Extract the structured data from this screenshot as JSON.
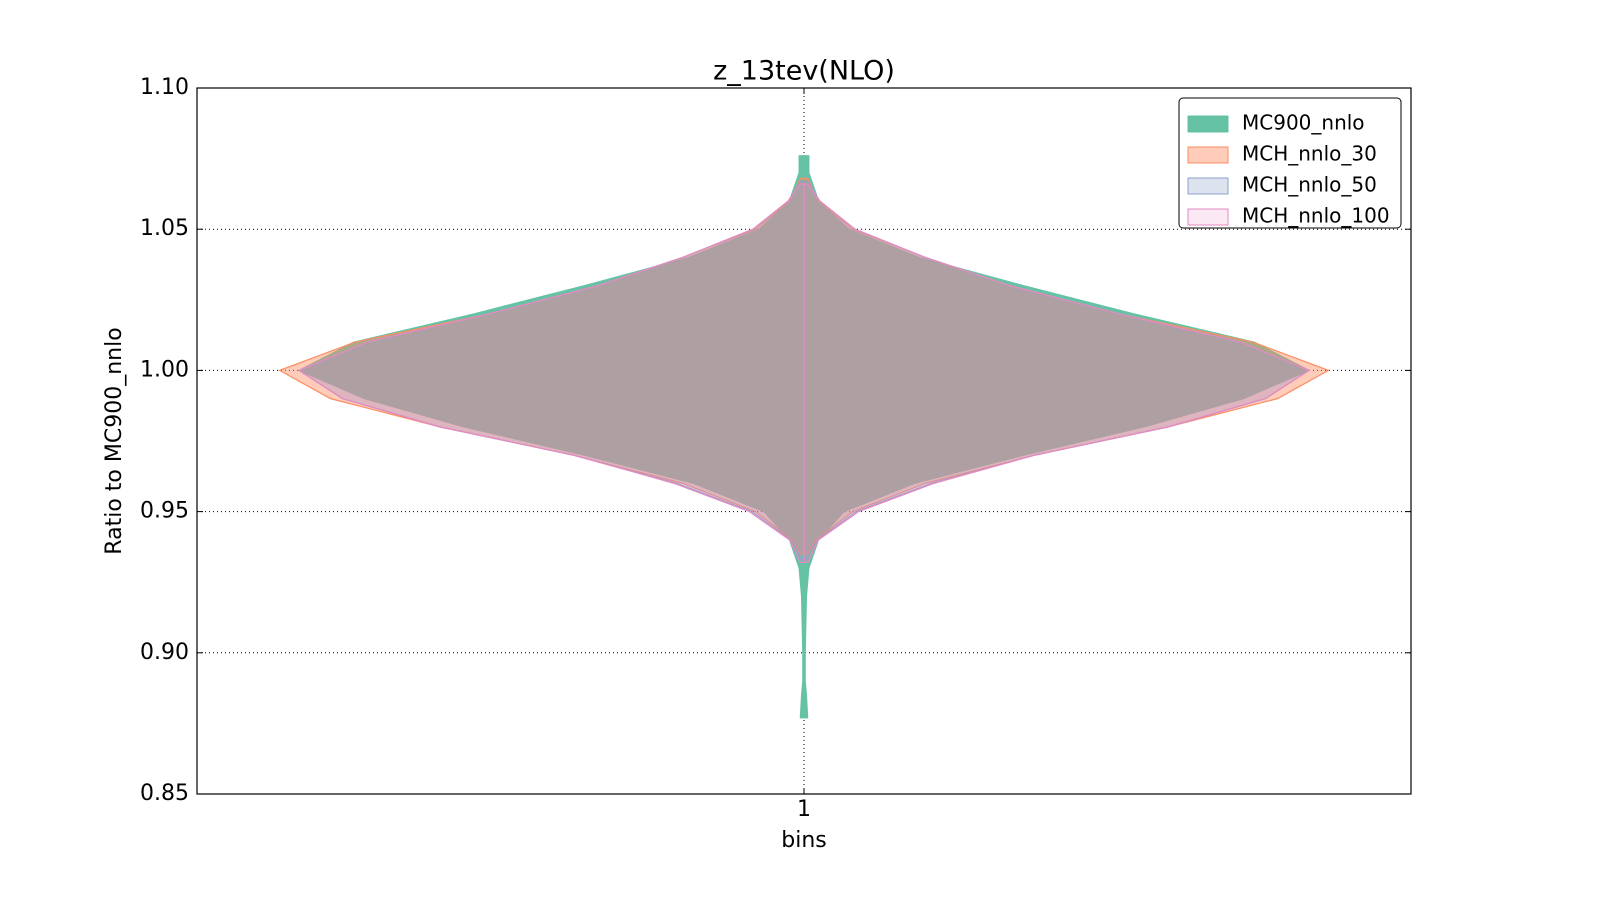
{
  "chart_data": {
    "type": "violin",
    "title": "z_13tev(NLO)",
    "xlabel": "bins",
    "ylabel": "Ratio to MC900_nnlo",
    "xlim": [
      0.5,
      1.5
    ],
    "xticks": [
      1
    ],
    "ylim": [
      0.85,
      1.1
    ],
    "yticks": [
      0.85,
      {
        "value": 0.9,
        "label": "0.90"
      },
      0.95,
      {
        "value": 1.0,
        "label": "1.00"
      },
      1.05,
      {
        "value": 1.1,
        "label": "1.10"
      }
    ],
    "grid": true,
    "legend": "upper right",
    "series": [
      {
        "name": "MC900_nnlo",
        "color": "#66c2a5",
        "alpha": 1,
        "y": [
          0.877,
          0.885,
          0.89,
          0.9,
          0.92,
          0.93,
          0.94,
          0.95,
          0.96,
          0.97,
          0.98,
          0.99,
          1.0,
          1.01,
          1.02,
          1.03,
          1.04,
          1.05,
          1.06,
          1.07,
          1.076
        ],
        "half_widths": [
          0.003,
          0.002,
          0.001,
          0.001,
          0.002,
          0.004,
          0.012,
          0.033,
          0.091,
          0.181,
          0.28,
          0.362,
          0.416,
          0.371,
          0.272,
          0.181,
          0.095,
          0.037,
          0.012,
          0.004,
          0.004
        ]
      },
      {
        "name": "MCH_nnlo_30",
        "color": "#fc8d62",
        "alpha": 0.45,
        "y": [
          0.935,
          0.94,
          0.95,
          0.96,
          0.97,
          0.98,
          0.99,
          1.0,
          1.01,
          1.02,
          1.03,
          1.04,
          1.05,
          1.06,
          1.068
        ],
        "half_widths": [
          0.003,
          0.01,
          0.04,
          0.1,
          0.19,
          0.3,
          0.39,
          0.432,
          0.37,
          0.26,
          0.17,
          0.1,
          0.04,
          0.012,
          0.003
        ]
      },
      {
        "name": "MCH_nnlo_50",
        "color": "#8da0cb",
        "alpha": 0.3,
        "y": [
          0.933,
          0.94,
          0.95,
          0.96,
          0.97,
          0.98,
          0.99,
          1.0,
          1.01,
          1.02,
          1.03,
          1.04,
          1.05,
          1.06,
          1.067
        ],
        "half_widths": [
          0.003,
          0.011,
          0.043,
          0.105,
          0.19,
          0.3,
          0.38,
          0.416,
          0.36,
          0.26,
          0.17,
          0.1,
          0.042,
          0.013,
          0.003
        ]
      },
      {
        "name": "MCH_nnlo_100",
        "color": "#e78ac3",
        "alpha": 0.2,
        "y": [
          0.932,
          0.94,
          0.95,
          0.96,
          0.97,
          0.98,
          0.99,
          1.0,
          1.01,
          1.02,
          1.03,
          1.04,
          1.05,
          1.06,
          1.066
        ],
        "half_widths": [
          0.003,
          0.012,
          0.045,
          0.107,
          0.19,
          0.3,
          0.38,
          0.416,
          0.36,
          0.26,
          0.17,
          0.1,
          0.042,
          0.013,
          0.003
        ]
      }
    ]
  }
}
